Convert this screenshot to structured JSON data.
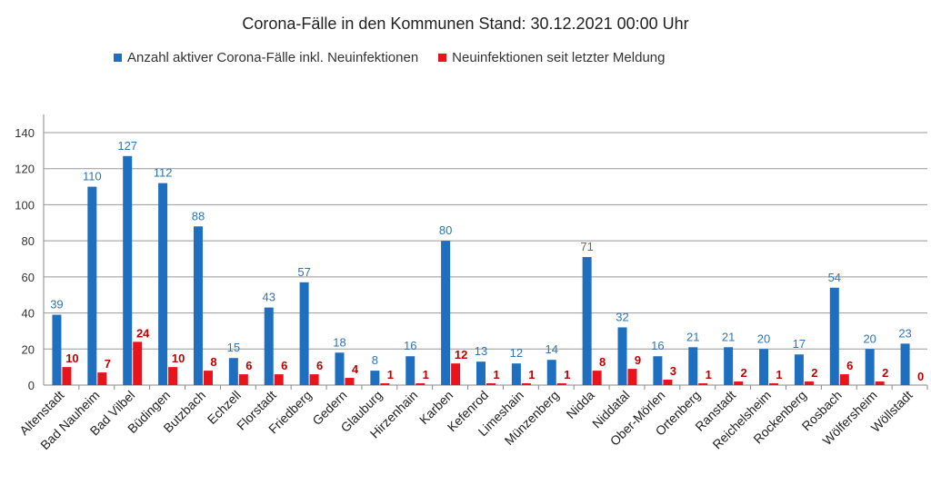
{
  "chart_data": {
    "type": "bar",
    "title": "Corona-Fälle in den Kommunen Stand: 30.12.2021 00:00 Uhr",
    "categories": [
      "Altenstadt",
      "Bad Nauheim",
      "Bad Vilbel",
      "Büdingen",
      "Butzbach",
      "Echzell",
      "Florstadt",
      "Friedberg",
      "Gedern",
      "Glauburg",
      "Hirzenhain",
      "Karben",
      "Kefenrod",
      "Limeshain",
      "Münzenberg",
      "Nidda",
      "Niddatal",
      "Ober-Mörlen",
      "Ortenberg",
      "Ranstadt",
      "Reichelsheim",
      "Rockenberg",
      "Rosbach",
      "Wölfersheim",
      "Wöllstadt"
    ],
    "series": [
      {
        "name": "Anzahl aktiver Corona-Fälle inkl. Neuinfektionen",
        "color": "#1f6fc1",
        "label_color": "#2e75b6",
        "values": [
          39,
          110,
          127,
          112,
          88,
          15,
          43,
          57,
          18,
          8,
          16,
          80,
          13,
          12,
          14,
          71,
          32,
          16,
          21,
          21,
          20,
          17,
          54,
          20,
          23
        ]
      },
      {
        "name": "Neuinfektionen seit letzter Meldung",
        "color": "#e8141b",
        "label_color": "#c00000",
        "values": [
          10,
          7,
          24,
          10,
          8,
          6,
          6,
          6,
          4,
          1,
          1,
          12,
          1,
          1,
          1,
          8,
          9,
          3,
          1,
          2,
          1,
          2,
          6,
          2,
          0
        ]
      }
    ],
    "yticks": [
      0,
      20,
      40,
      60,
      80,
      100,
      120,
      140
    ],
    "ylim": [
      0,
      140
    ],
    "grid": true,
    "legend": "top",
    "xlabel": "",
    "ylabel": ""
  }
}
